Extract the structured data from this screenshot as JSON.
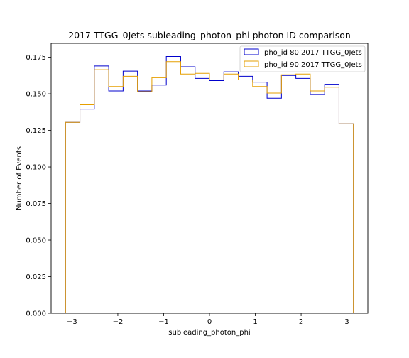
{
  "chart_data": {
    "type": "step-histogram",
    "title": "2017 TTGG_0Jets subleading_photon_phi photon ID comparison",
    "xlabel": "subleading_photon_phi",
    "ylabel": "Number of Events",
    "xlim": [
      -3.4558,
      3.4558
    ],
    "ylim": [
      0.0,
      0.1845
    ],
    "x_ticks": [
      -3,
      -2,
      -1,
      0,
      1,
      2,
      3
    ],
    "x_tick_labels": [
      "−3",
      "−2",
      "−1",
      "0",
      "1",
      "2",
      "3"
    ],
    "y_ticks": [
      0.0,
      0.025,
      0.05,
      0.075,
      0.1,
      0.125,
      0.15,
      0.175
    ],
    "y_tick_labels": [
      "0.000",
      "0.025",
      "0.050",
      "0.075",
      "0.100",
      "0.125",
      "0.150",
      "0.175"
    ],
    "bin_edges": [
      -3.14159,
      -2.82743,
      -2.51327,
      -2.19911,
      -1.88496,
      -1.5708,
      -1.25664,
      -0.94248,
      -0.62832,
      -0.31416,
      0.0,
      0.31416,
      0.62832,
      0.94248,
      1.25664,
      1.5708,
      1.88496,
      2.19911,
      2.51327,
      2.82743,
      3.14159
    ],
    "series": [
      {
        "name": "pho_id 80 2017 TTGG_0Jets",
        "color": "#0000cc",
        "values": [
          0.1305,
          0.1395,
          0.169,
          0.152,
          0.1655,
          0.152,
          0.156,
          0.1755,
          0.1685,
          0.1605,
          0.159,
          0.165,
          0.162,
          0.158,
          0.147,
          0.1625,
          0.1605,
          0.1495,
          0.1565,
          0.1295
        ]
      },
      {
        "name": "pho_id 90 2017 TTGG_0Jets",
        "color": "#e69f00",
        "values": [
          0.1305,
          0.1425,
          0.1665,
          0.155,
          0.162,
          0.1515,
          0.161,
          0.172,
          0.1635,
          0.164,
          0.1595,
          0.1635,
          0.1595,
          0.155,
          0.1505,
          0.163,
          0.1635,
          0.152,
          0.1545,
          0.1295
        ]
      }
    ],
    "legend_position": "top-right",
    "grid": false
  }
}
